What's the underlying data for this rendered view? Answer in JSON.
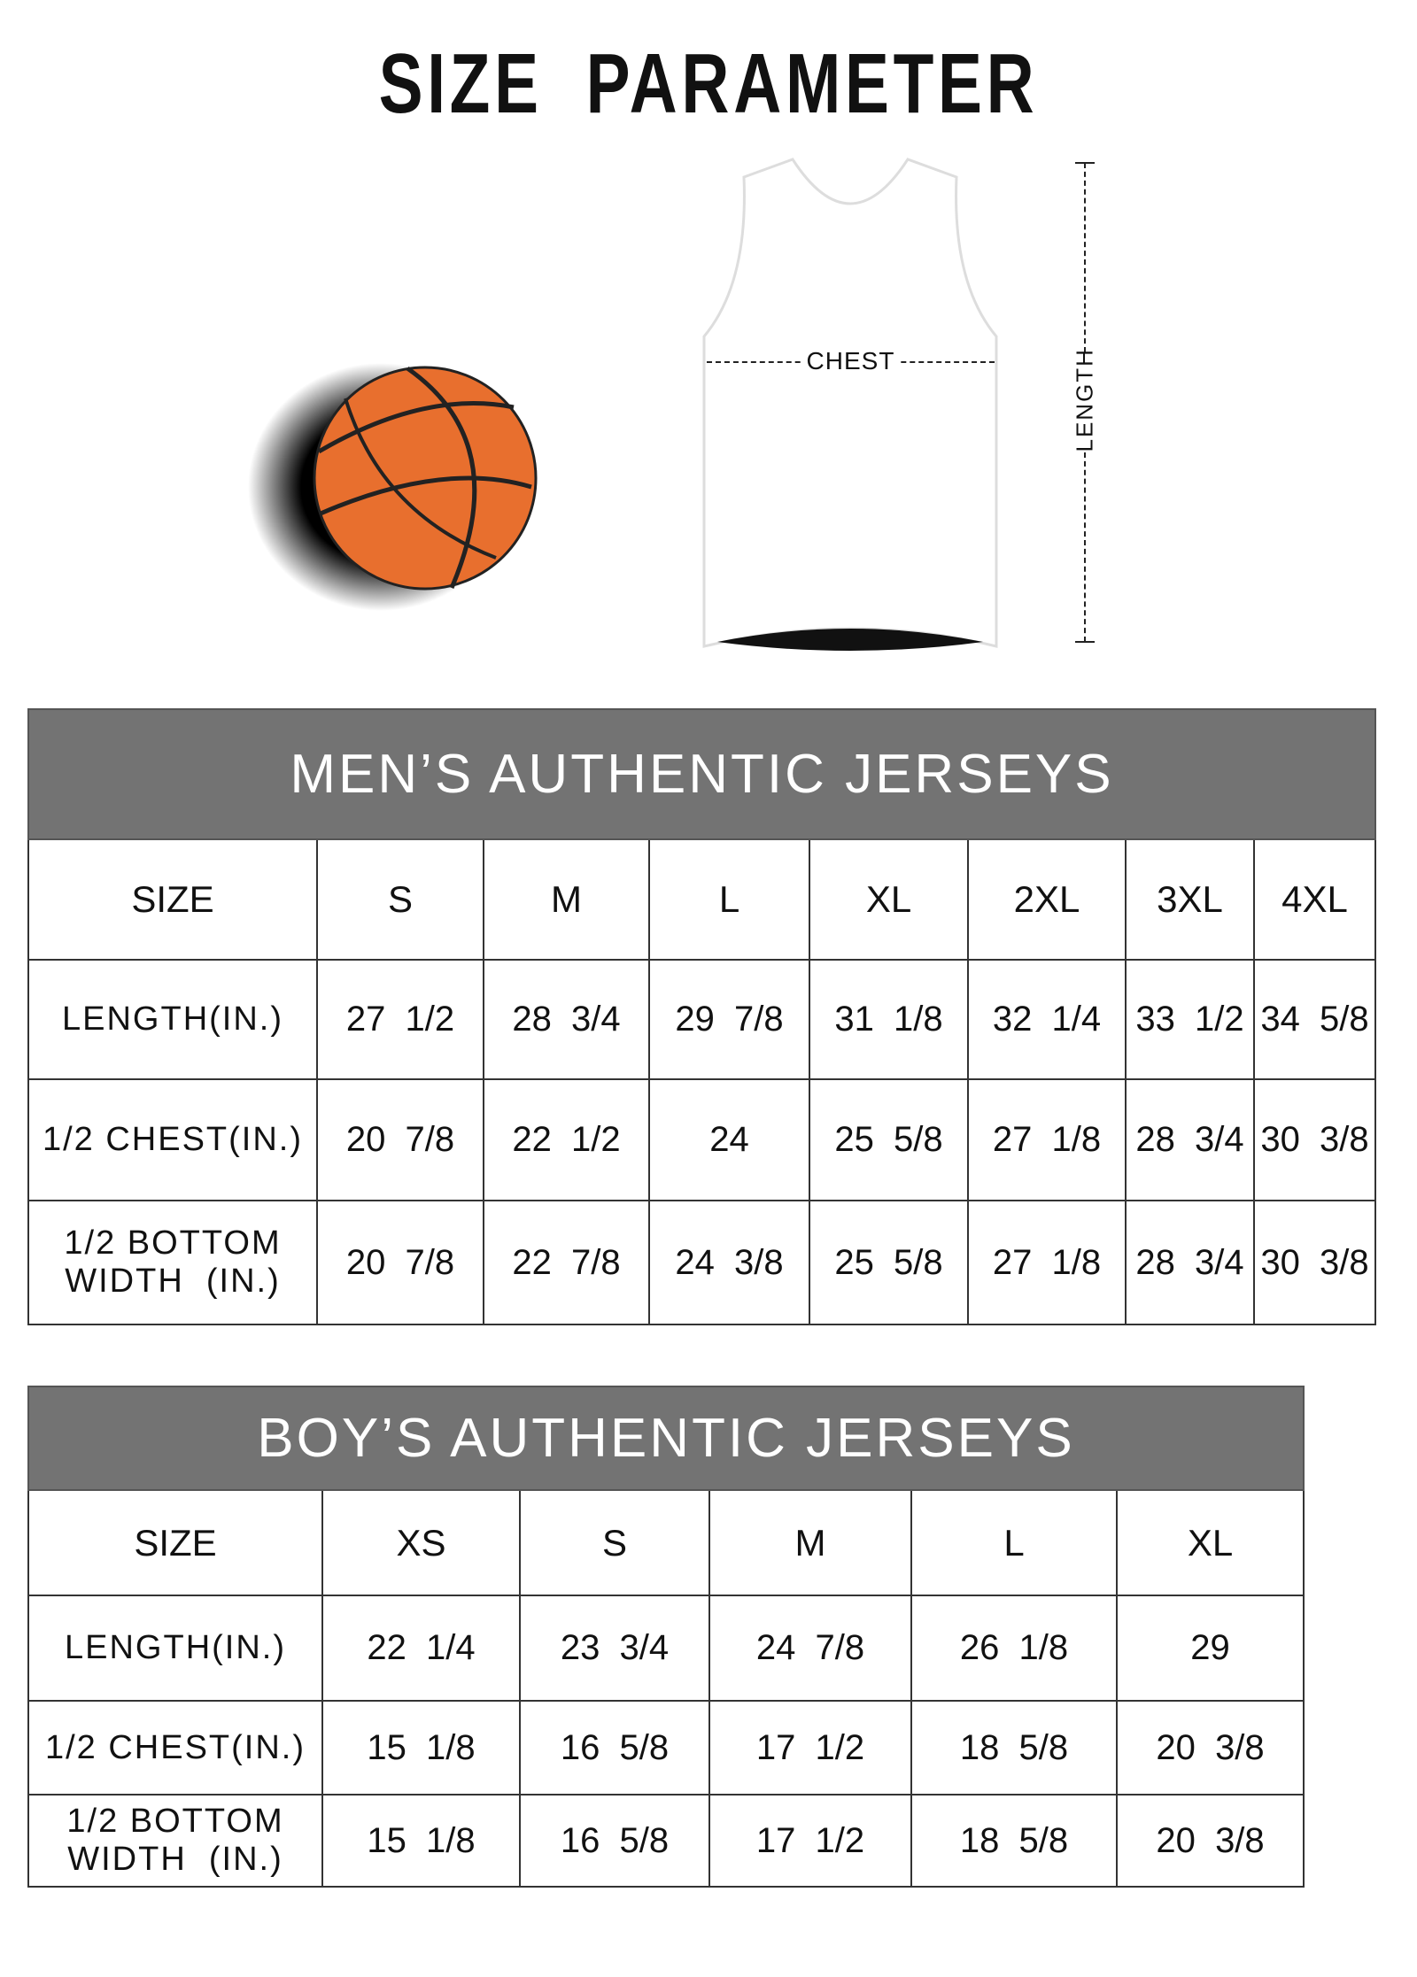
{
  "title": "SIZE  PARAMETER",
  "diagram": {
    "chest_label": "CHEST",
    "length_label": "LENGTH",
    "ball_color": "#e86f2e"
  },
  "mens": {
    "title": "MEN’S AUTHENTIC JERSEYS",
    "header": [
      "SIZE",
      "S",
      "M",
      "L",
      "XL",
      "2XL",
      "3XL",
      "4XL"
    ],
    "rows": [
      {
        "label": "LENGTH(IN.)",
        "values": [
          "27  1/2",
          "28  3/4",
          "29  7/8",
          "31  1/8",
          "32  1/4",
          "33  1/2",
          "34  5/8"
        ]
      },
      {
        "label": "1/2 CHEST(IN.)",
        "values": [
          "20  7/8",
          "22  1/2",
          "24",
          "25  5/8",
          "27  1/8",
          "28  3/4",
          "30  3/8"
        ]
      },
      {
        "label": "1/2 BOTTOM WIDTH  (IN.)",
        "values": [
          "20  7/8",
          "22  7/8",
          "24  3/8",
          "25  5/8",
          "27  1/8",
          "28  3/4",
          "30  3/8"
        ]
      }
    ]
  },
  "boys": {
    "title": "BOY’S AUTHENTIC JERSEYS",
    "header": [
      "SIZE",
      "XS",
      "S",
      "M",
      "L",
      "XL"
    ],
    "rows": [
      {
        "label": "LENGTH(IN.)",
        "values": [
          "22  1/4",
          "23  3/4",
          "24  7/8",
          "26  1/8",
          "29"
        ]
      },
      {
        "label": "1/2 CHEST(IN.)",
        "values": [
          "15  1/8",
          "16  5/8",
          "17  1/2",
          "18  5/8",
          "20  3/8"
        ]
      },
      {
        "label": "1/2 BOTTOM WIDTH  (IN.)",
        "values": [
          "15  1/8",
          "16  5/8",
          "17  1/2",
          "18  5/8",
          "20  3/8"
        ]
      }
    ]
  },
  "header_color": "#737373"
}
